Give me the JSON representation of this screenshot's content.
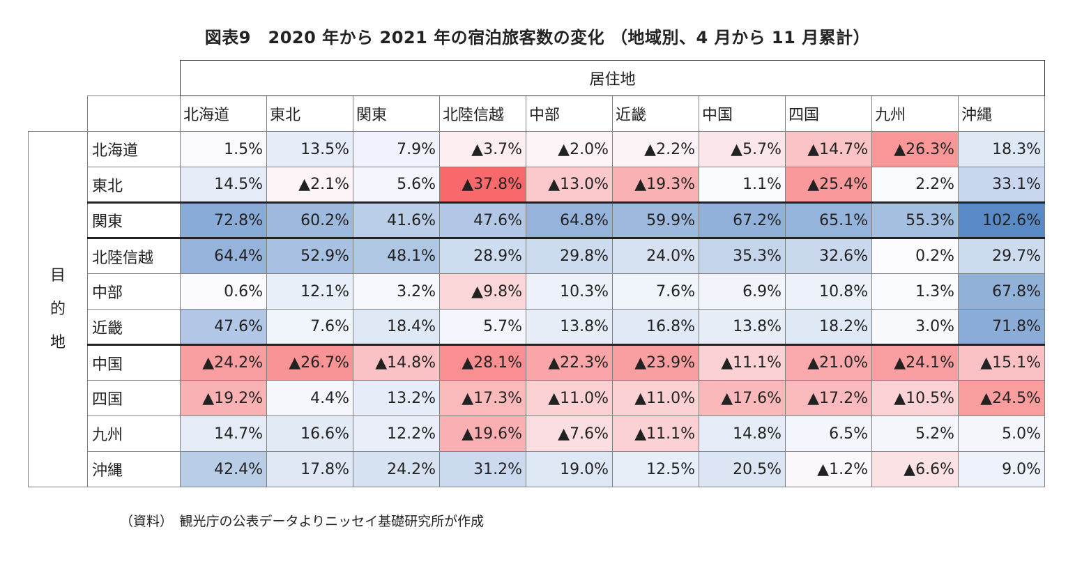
{
  "title": "図表9　2020 年から 2021 年の宿泊旅客数の変化 （地域別、4 月から 11 月累計）",
  "source": "（資料）　観光庁の公表データよりニッセイ基礎研究所が作成",
  "chart_data": {
    "type": "heatmap",
    "title": "図表9　2020 年から 2021 年の宿泊旅客数の変化 （地域別、4 月から 11 月累計）",
    "column_axis_label": "居住地",
    "row_axis_label": "目的地",
    "columns": [
      "北海道",
      "東北",
      "関東",
      "北陸信越",
      "中部",
      "近畿",
      "中国",
      "四国",
      "九州",
      "沖縄"
    ],
    "rows": [
      "北海道",
      "東北",
      "関東",
      "北陸信越",
      "中部",
      "近畿",
      "中国",
      "四国",
      "九州",
      "沖縄"
    ],
    "unit": "%",
    "negative_marker": "▲",
    "values": [
      [
        1.5,
        13.5,
        7.9,
        -3.7,
        -2.0,
        -2.2,
        -5.7,
        -14.7,
        -26.3,
        18.3
      ],
      [
        14.5,
        -2.1,
        5.6,
        -37.8,
        -13.0,
        -19.3,
        1.1,
        -25.4,
        2.2,
        33.1
      ],
      [
        72.8,
        60.2,
        41.6,
        47.6,
        64.8,
        59.9,
        67.2,
        65.1,
        55.3,
        102.6
      ],
      [
        64.4,
        52.9,
        48.1,
        28.9,
        29.8,
        24.0,
        35.3,
        32.6,
        0.2,
        29.7
      ],
      [
        0.6,
        12.1,
        3.2,
        -9.8,
        10.3,
        7.6,
        6.9,
        10.8,
        1.3,
        67.8
      ],
      [
        47.6,
        7.6,
        18.4,
        5.7,
        13.8,
        16.8,
        13.8,
        18.2,
        3.0,
        71.8
      ],
      [
        -24.2,
        -26.7,
        -14.8,
        -28.1,
        -22.3,
        -23.9,
        -11.1,
        -21.0,
        -24.1,
        -15.1
      ],
      [
        -19.2,
        4.4,
        13.2,
        -17.3,
        -11.0,
        -11.0,
        -17.6,
        -17.2,
        -10.5,
        -24.5
      ],
      [
        14.7,
        16.6,
        12.2,
        -19.6,
        -7.6,
        -11.1,
        14.8,
        6.5,
        5.2,
        5.0
      ],
      [
        42.4,
        17.8,
        24.2,
        31.2,
        19.0,
        12.5,
        20.5,
        -1.2,
        -6.6,
        9.0
      ]
    ],
    "colors": {
      "negative": "#f8696b",
      "positive": "#5a8ac6",
      "zero": "#fcfcff"
    },
    "scale": {
      "min": -37.8,
      "max": 102.6
    },
    "highlighted_row": "関東",
    "highlighted_block_start": "中国"
  }
}
